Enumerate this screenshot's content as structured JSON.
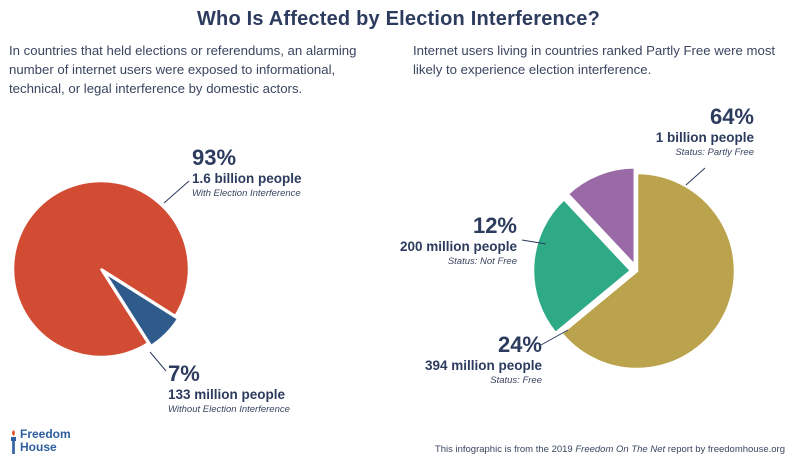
{
  "title": "Who Is Affected by Election Interference?",
  "intro_left": "In countries that held elections or referendums, an alarming number of internet users were exposed to informational, technical, or legal interference by domestic actors.",
  "intro_right": "Internet users living in countries ranked Partly Free were most likely to experience election interference.",
  "colors": {
    "with_interference": "#d24b33",
    "without_interference": "#2f5b8c",
    "partly_free": "#bba34d",
    "not_free": "#9a6aa6",
    "free": "#2eaa86",
    "label": "#2c3b5e"
  },
  "chart_data": [
    {
      "type": "pie",
      "slices": [
        {
          "label": "With Election Interference",
          "percent": 93,
          "pct_text": "93%",
          "people": "1.6 billion people",
          "color": "#d24b33"
        },
        {
          "label": "Without Election Interference",
          "percent": 7,
          "pct_text": "7%",
          "people": "133 million people",
          "color": "#2f5b8c",
          "exploded": true
        }
      ]
    },
    {
      "type": "pie",
      "slices": [
        {
          "label": "Status: Partly Free",
          "percent": 64,
          "pct_text": "64%",
          "people": "1 billion people",
          "color": "#bba34d"
        },
        {
          "label": "Status: Free",
          "percent": 24,
          "pct_text": "24%",
          "people": "394 million people",
          "color": "#2eaa86",
          "exploded": true
        },
        {
          "label": "Status: Not Free",
          "percent": 12,
          "pct_text": "12%",
          "people": "200 million people",
          "color": "#9a6aa6",
          "exploded": true
        }
      ]
    }
  ],
  "logo": {
    "line1": "Freedom",
    "line2": "House",
    "icon": "torch-icon"
  },
  "footer": {
    "prefix": "This infographic is from the 2019 ",
    "report": "Freedom On The Net",
    "suffix": " report by freedomhouse.org"
  }
}
